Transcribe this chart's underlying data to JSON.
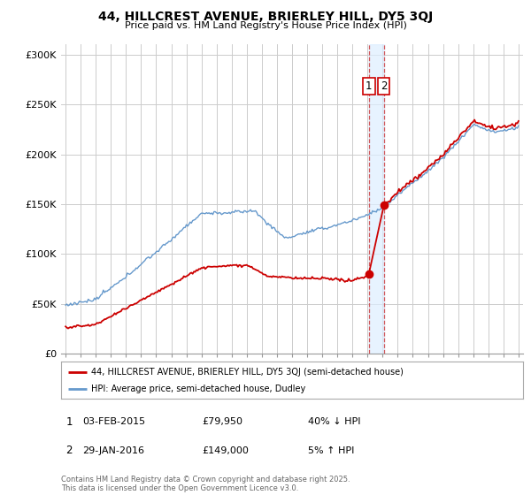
{
  "title_line1": "44, HILLCREST AVENUE, BRIERLEY HILL, DY5 3QJ",
  "title_line2": "Price paid vs. HM Land Registry's House Price Index (HPI)",
  "ylim": [
    0,
    310000
  ],
  "yticks": [
    0,
    50000,
    100000,
    150000,
    200000,
    250000,
    300000
  ],
  "ytick_labels": [
    "£0",
    "£50K",
    "£100K",
    "£150K",
    "£200K",
    "£250K",
    "£300K"
  ],
  "legend_entry1": "44, HILLCREST AVENUE, BRIERLEY HILL, DY5 3QJ (semi-detached house)",
  "legend_entry2": "HPI: Average price, semi-detached house, Dudley",
  "annotation1_label": "1",
  "annotation1_date": "03-FEB-2015",
  "annotation1_price": "£79,950",
  "annotation1_hpi": "40% ↓ HPI",
  "annotation2_label": "2",
  "annotation2_date": "29-JAN-2016",
  "annotation2_price": "£149,000",
  "annotation2_hpi": "5% ↑ HPI",
  "footer": "Contains HM Land Registry data © Crown copyright and database right 2025.\nThis data is licensed under the Open Government Licence v3.0.",
  "sale1_year": 2015.09,
  "sale1_y": 79950,
  "sale2_year": 2016.08,
  "sale2_y": 149000,
  "red_color": "#cc0000",
  "blue_color": "#6699cc",
  "shade_color": "#ddeeff",
  "vline_color": "#cc3333",
  "grid_color": "#cccccc",
  "background_color": "#ffffff",
  "xmin": 1995,
  "xmax": 2025
}
